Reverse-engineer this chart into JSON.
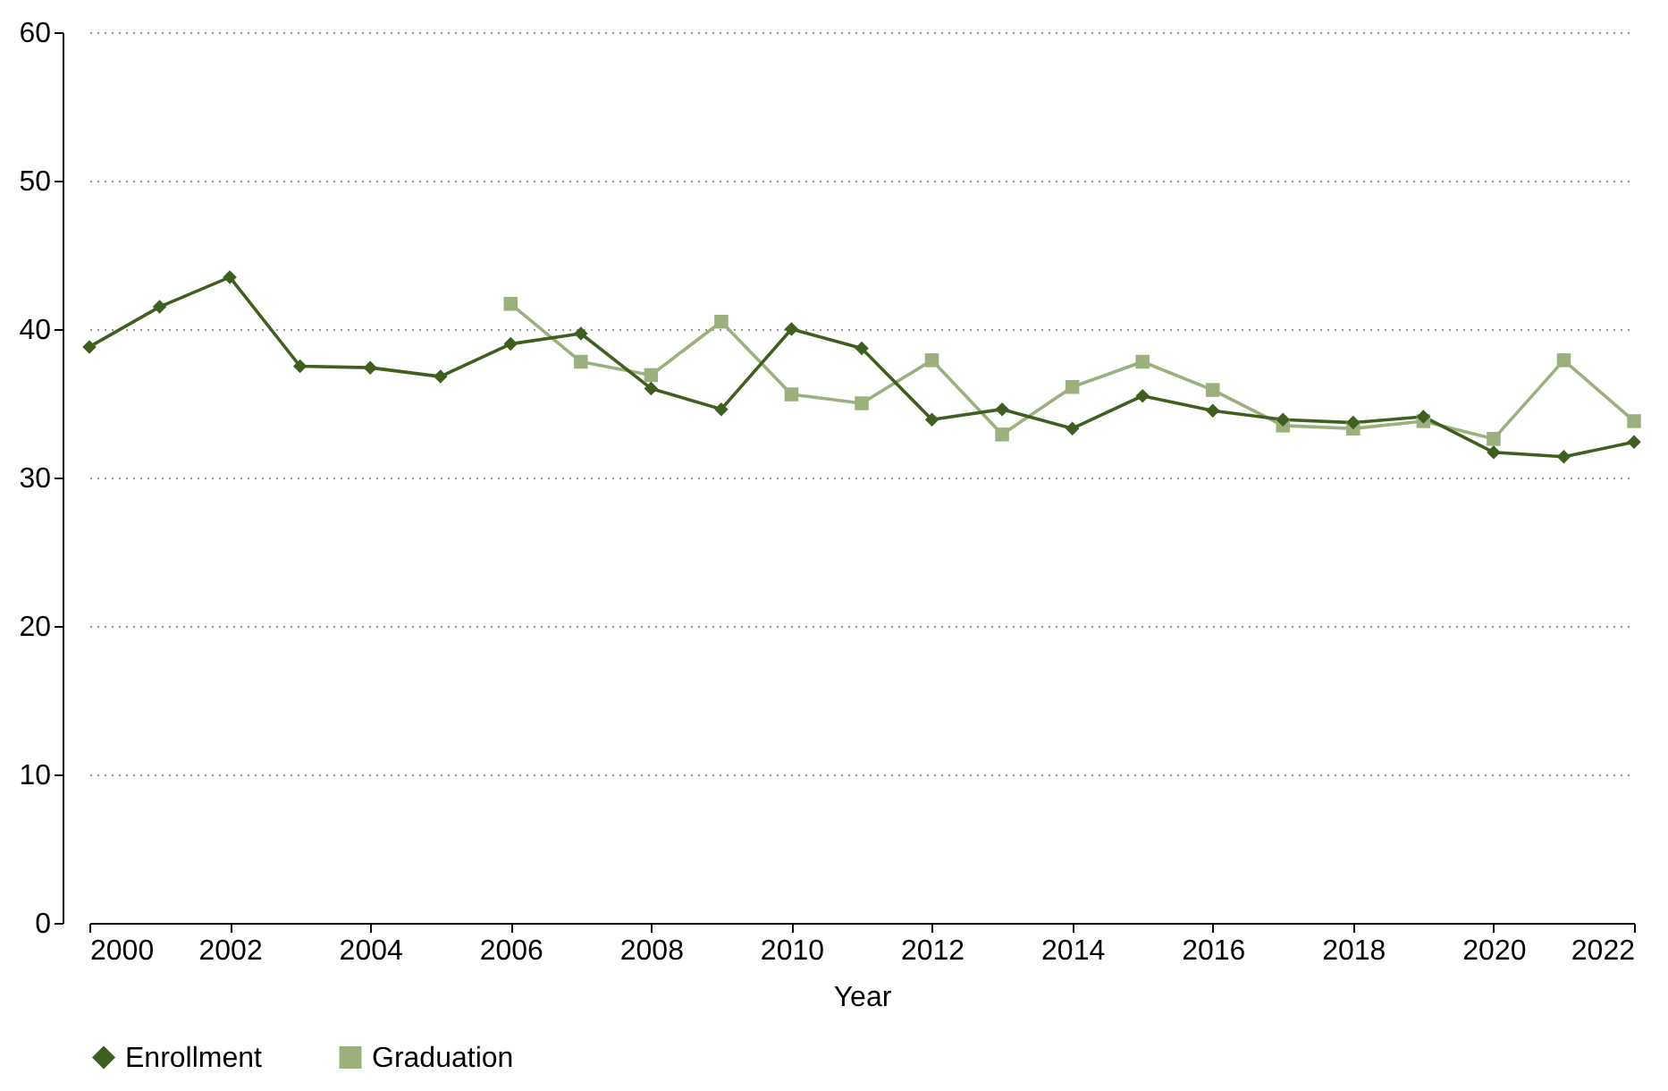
{
  "chart_data": {
    "type": "line",
    "xlabel": "Year",
    "xlim": [
      2000,
      2022
    ],
    "xticks": [
      2000,
      2002,
      2004,
      2006,
      2008,
      2010,
      2012,
      2014,
      2016,
      2018,
      2020,
      2022
    ],
    "ylim": [
      0,
      60
    ],
    "yticks": [
      0,
      10,
      20,
      30,
      40,
      50,
      60
    ],
    "grid": "y",
    "legend": "bottom",
    "line_style": "solid",
    "x": [
      2000,
      2001,
      2002,
      2003,
      2004,
      2005,
      2006,
      2007,
      2008,
      2009,
      2010,
      2011,
      2012,
      2013,
      2014,
      2015,
      2016,
      2017,
      2018,
      2019,
      2020,
      2021,
      2022
    ],
    "series": [
      {
        "name": "Enrollment",
        "color": "#3f5f1f",
        "marker": "diamond",
        "values": [
          38.8,
          41.5,
          43.5,
          37.5,
          37.4,
          36.8,
          39.0,
          39.7,
          36.0,
          34.6,
          40.0,
          38.7,
          33.9,
          34.6,
          33.3,
          35.5,
          34.5,
          33.9,
          33.7,
          34.1,
          31.7,
          31.4,
          32.4
        ]
      },
      {
        "name": "Graduation",
        "color": "#9bb07d",
        "marker": "square",
        "x": [
          2006,
          2007,
          2008,
          2009,
          2010,
          2011,
          2012,
          2013,
          2014,
          2015,
          2016,
          2017,
          2018,
          2019,
          2020,
          2021,
          2022
        ],
        "values": [
          41.7,
          37.8,
          36.9,
          40.5,
          35.6,
          35.0,
          37.9,
          32.9,
          36.1,
          37.8,
          35.9,
          33.5,
          33.3,
          33.8,
          32.6,
          37.9,
          33.8
        ]
      }
    ]
  }
}
